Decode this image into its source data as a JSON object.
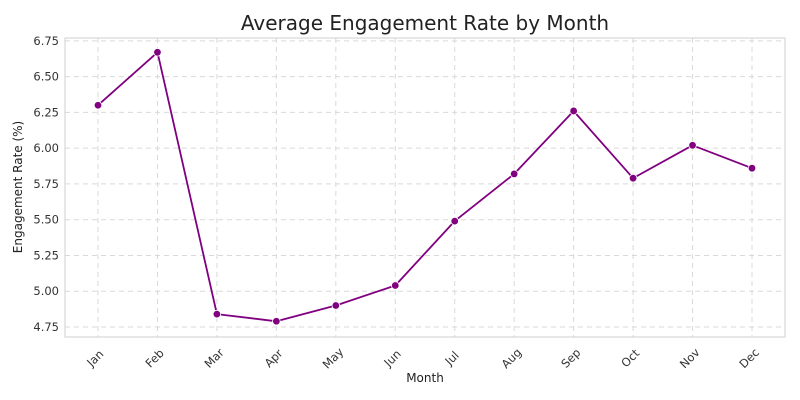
{
  "chart_data": {
    "type": "line",
    "title": "Average Engagement Rate by Month",
    "xlabel": "Month",
    "ylabel": "Engagement Rate (%)",
    "categories": [
      "Jan",
      "Feb",
      "Mar",
      "Apr",
      "May",
      "Jun",
      "Jul",
      "Aug",
      "Sep",
      "Oct",
      "Nov",
      "Dec"
    ],
    "values": [
      6.3,
      6.67,
      4.84,
      4.79,
      4.9,
      5.04,
      5.49,
      5.82,
      6.26,
      5.79,
      6.02,
      5.86
    ],
    "ylim": [
      4.68,
      6.77
    ],
    "yticks": [
      "4.75",
      "5.00",
      "5.25",
      "5.50",
      "5.75",
      "6.00",
      "6.25",
      "6.50",
      "6.75"
    ],
    "grid": true,
    "line_color": "#800080",
    "marker_color": "#800080"
  }
}
